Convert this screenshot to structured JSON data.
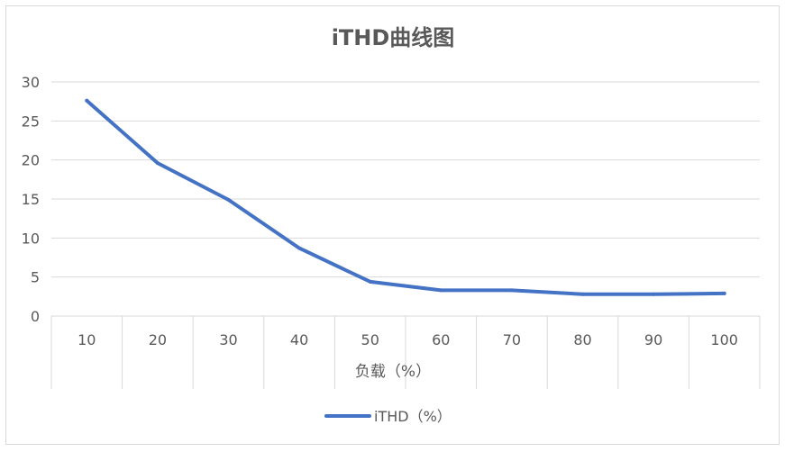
{
  "chart_data": {
    "type": "line",
    "title": "iTHD曲线图",
    "xlabel": "负载（%）",
    "ylabel": "",
    "categories": [
      "10",
      "20",
      "30",
      "40",
      "50",
      "60",
      "70",
      "80",
      "90",
      "100"
    ],
    "series": [
      {
        "name": "iTHD（%）",
        "values": [
          27.6,
          19.6,
          14.9,
          8.7,
          4.4,
          3.3,
          3.3,
          2.8,
          2.8,
          2.9
        ],
        "color": "#4472c4"
      }
    ],
    "ylim": [
      0,
      30
    ],
    "yticks": [
      "0",
      "5",
      "10",
      "15",
      "20",
      "25",
      "30"
    ],
    "grid": true,
    "legend_position": "bottom"
  }
}
